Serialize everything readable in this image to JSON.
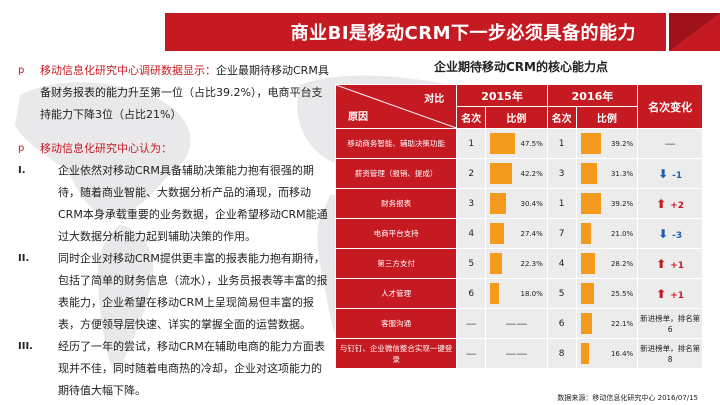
{
  "title": "商业BI是移动CRM下一步必须具备的能力",
  "left": {
    "bullet_marker": "p",
    "p1_prefix": "移动信息化研究中心调研数据显示：",
    "p1_body": "企业最期待移动CRM具备财务报表的能力升至第一位（占比39.2%），电商平台支持能力下降3位（占比21%）",
    "p2_heading": "移动信息化研究中心认为：",
    "items": [
      {
        "num": "I.",
        "text": "企业依然对移动CRM具备辅助决策能力抱有很强的期待，随着商业智能、大数据分析产品的涌现，而移动CRM本身承载重要的业务数据，企业希望移动CRM能通过大数据分析能力起到辅助决策的作用。"
      },
      {
        "num": "II.",
        "text": "同时企业对移动CRM提供更丰富的报表能力抱有期待，包括了简单的财务信息（流水），业务员报表等丰富的报表能力，企业希望在移动CRM上呈现简易但丰富的报表，方便领导层快速、详实的掌握全面的运营数据。"
      },
      {
        "num": "III.",
        "text": "经历了一年的尝试，移动CRM在辅助电商的能力方面表现并不佳，同时随着电商热的冷却，企业对这项能力的期待值大幅下降。"
      }
    ]
  },
  "table": {
    "title": "企业期待移动CRM的核心能力点",
    "header_compare": "对比",
    "header_reason": "原因",
    "year1": "2015年",
    "year2": "2016年",
    "rank_label": "名次",
    "ratio_label": "比例",
    "change_label": "名次变化",
    "dash": "—",
    "rows": [
      {
        "cat": "移动商务智能、辅助决策功能",
        "r15": "1",
        "p15": "47.5%",
        "v15": 47.5,
        "r16": "1",
        "p16": "39.2%",
        "v16": 39.2,
        "change": "—",
        "dir": "none",
        "note": ""
      },
      {
        "cat": "薪资管理（报销、提成）",
        "r15": "2",
        "p15": "42.2%",
        "v15": 42.2,
        "r16": "3",
        "p16": "31.3%",
        "v16": 31.3,
        "change": "-1",
        "dir": "down",
        "note": ""
      },
      {
        "cat": "财务报表",
        "r15": "3",
        "p15": "30.4%",
        "v15": 30.4,
        "r16": "1",
        "p16": "39.2%",
        "v16": 39.2,
        "change": "+2",
        "dir": "up",
        "note": ""
      },
      {
        "cat": "电商平台支持",
        "r15": "4",
        "p15": "27.4%",
        "v15": 27.4,
        "r16": "7",
        "p16": "21.0%",
        "v16": 21.0,
        "change": "-3",
        "dir": "down",
        "note": ""
      },
      {
        "cat": "第三方支付",
        "r15": "5",
        "p15": "22.3%",
        "v15": 22.3,
        "r16": "4",
        "p16": "28.2%",
        "v16": 28.2,
        "change": "+1",
        "dir": "up",
        "note": ""
      },
      {
        "cat": "人才管理",
        "r15": "6",
        "p15": "18.0%",
        "v15": 18.0,
        "r16": "5",
        "p16": "25.5%",
        "v16": 25.5,
        "change": "+1",
        "dir": "up",
        "note": ""
      },
      {
        "cat": "客服沟通",
        "r15": "—",
        "p15": "——",
        "v15": 0,
        "r16": "6",
        "p16": "22.1%",
        "v16": 22.1,
        "change": "",
        "dir": "new",
        "note": "新进榜单，排名第6"
      },
      {
        "cat": "与钉钉、企业微信整合实现一键登录",
        "r15": "—",
        "p15": "——",
        "v15": 0,
        "r16": "8",
        "p16": "16.4%",
        "v16": 16.4,
        "change": "",
        "dir": "new",
        "note": "新进榜单，排名第8"
      }
    ]
  },
  "source": "数据来源：移动信息化研究中心 2016/07/15",
  "colors": {
    "accent": "#c51a22",
    "bar": "#f19a1c",
    "down": "#1e5fb4"
  }
}
